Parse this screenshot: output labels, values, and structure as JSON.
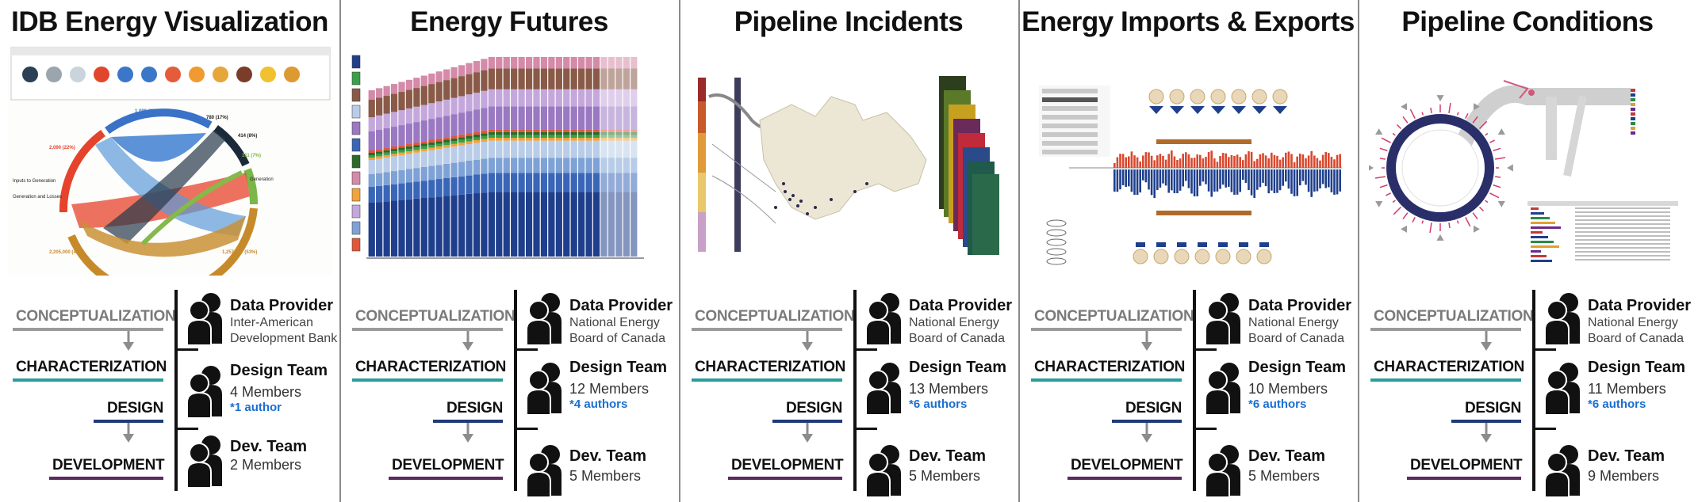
{
  "colors": {
    "conceptualization": "#9a9a9a",
    "characterization": "#2a9d9d",
    "design": "#1f3a78",
    "development": "#5b2a5e",
    "authors": "#1a6fd0"
  },
  "stages": {
    "conceptualization": "CONCEPTUALIZATION",
    "characterization": "CHARACTERIZATION",
    "design": "DESIGN",
    "development": "DEVELOPMENT"
  },
  "icons": {
    "team": "people-icon",
    "flow": "down-arrow-icon"
  },
  "panels": [
    {
      "title": "IDB Energy Visualization",
      "thumbnail": "idb-chord-diagram",
      "provider_role": "Data Provider",
      "provider_lines": [
        "Inter-American",
        "Development Bank"
      ],
      "design_role": "Design Team",
      "design_members": "4 Members",
      "design_authors": "*1 author",
      "dev_role": "Dev. Team",
      "dev_members": "2 Members"
    },
    {
      "title": "Energy Futures",
      "thumbnail": "energy-futures-stacked-bars",
      "provider_role": "Data Provider",
      "provider_lines": [
        "National Energy",
        "Board of Canada"
      ],
      "design_role": "Design Team",
      "design_members": "12 Members",
      "design_authors": "*4 authors",
      "dev_role": "Dev. Team",
      "dev_members": "5 Members"
    },
    {
      "title": "Pipeline Incidents",
      "thumbnail": "pipeline-incidents-map",
      "provider_role": "Data Provider",
      "provider_lines": [
        "National Energy",
        "Board of Canada"
      ],
      "design_role": "Design Team",
      "design_members": "13 Members",
      "design_authors": "*6 authors",
      "dev_role": "Dev. Team",
      "dev_members": "5 Members"
    },
    {
      "title": "Energy Imports & Exports",
      "thumbnail": "imports-exports-timeline",
      "provider_role": "Data Provider",
      "provider_lines": [
        "National Energy",
        "Board of Canada"
      ],
      "design_role": "Design Team",
      "design_members": "10 Members",
      "design_authors": "*6 authors",
      "dev_role": "Dev. Team",
      "dev_members": "5 Members"
    },
    {
      "title": "Pipeline Conditions",
      "thumbnail": "pipeline-conditions-circle",
      "provider_role": "Data Provider",
      "provider_lines": [
        "National Energy",
        "Board of Canada"
      ],
      "design_role": "Design Team",
      "design_members": "11 Members",
      "design_authors": "*6 authors",
      "dev_role": "Dev. Team",
      "dev_members": "9 Members"
    }
  ]
}
